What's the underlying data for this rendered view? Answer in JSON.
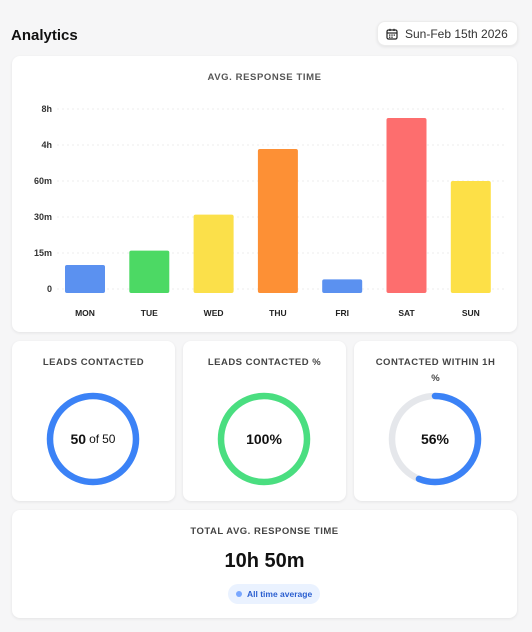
{
  "header": {
    "title": "Analytics",
    "date_label": "Sun-Feb 15th 2026",
    "calendar_icon": "calendar-icon"
  },
  "response_chart": {
    "title": "AVG. RESPONSE TIME"
  },
  "chart_data": {
    "type": "bar",
    "title": "AVG. RESPONSE TIME",
    "categories": [
      "MON",
      "TUE",
      "WED",
      "THU",
      "FRI",
      "SAT",
      "SUN"
    ],
    "y_ticks": [
      "0",
      "15m",
      "30m",
      "60m",
      "4h",
      "8h"
    ],
    "y_tick_minutes": [
      0,
      15,
      30,
      60,
      240,
      480
    ],
    "values_minutes": [
      10,
      16,
      32,
      220,
      4,
      420,
      60
    ],
    "colors": [
      "#5b91f0",
      "#4cd964",
      "#fbe04a",
      "#fd9035",
      "#5b91f0",
      "#fd6e6e",
      "#fde047"
    ],
    "grid": true,
    "legend": "none"
  },
  "metrics": [
    {
      "title": "LEADS CONTACTED",
      "value": "50",
      "of": "of",
      "total": "50",
      "fraction": 1.0,
      "color": "#3b82f6"
    },
    {
      "title": "LEADS CONTACTED %",
      "value": "100%",
      "fraction": 1.0,
      "color": "#4ade80"
    },
    {
      "title": "CONTACTED WITHIN 1H",
      "subtitle": "%",
      "value": "56%",
      "fraction": 0.56,
      "color": "#3b82f6",
      "track_color": "#e5e7eb"
    }
  ],
  "total": {
    "title": "TOTAL AVG. RESPONSE TIME",
    "value": "10h 50m",
    "badge": "All time average"
  }
}
